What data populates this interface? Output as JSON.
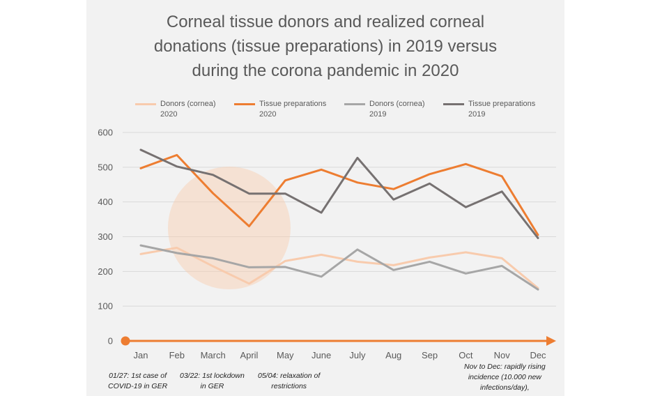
{
  "chart_data": {
    "type": "line",
    "title_lines": [
      "Corneal tissue donors and realized corneal",
      "donations (tissue preparations) in 2019 versus",
      "during the corona pandemic in 2020"
    ],
    "categories": [
      "Jan",
      "Feb",
      "March",
      "April",
      "May",
      "June",
      "July",
      "Aug",
      "Sep",
      "Oct",
      "Nov",
      "Dec"
    ],
    "y_ticks": [
      "0",
      "100",
      "200",
      "300",
      "400",
      "500",
      "600"
    ],
    "ylim": [
      0,
      600
    ],
    "grid": true,
    "legend_position": "top",
    "series": [
      {
        "name_lines": [
          "Donors (cornea)",
          "2020"
        ],
        "color": "#f8cbad",
        "values": [
          250,
          268,
          215,
          165,
          230,
          248,
          228,
          218,
          240,
          255,
          238,
          152
        ]
      },
      {
        "name_lines": [
          "Tissue preparations",
          "2020"
        ],
        "color": "#ed7d31",
        "values": [
          497,
          535,
          425,
          330,
          462,
          493,
          456,
          437,
          480,
          509,
          474,
          305
        ]
      },
      {
        "name_lines": [
          "Donors (cornea)",
          "2019"
        ],
        "color": "#a6a6a6",
        "values": [
          275,
          253,
          238,
          212,
          213,
          185,
          263,
          204,
          228,
          194,
          216,
          148
        ]
      },
      {
        "name_lines": [
          "Tissue preparations",
          "2019"
        ],
        "color": "#767171",
        "values": [
          550,
          502,
          478,
          424,
          424,
          369,
          527,
          407,
          453,
          385,
          430,
          296
        ]
      }
    ],
    "highlight": {
      "color": "#f8cbad"
    },
    "annotations": [
      {
        "lines": [
          "01/27: 1st case of",
          "COVID-19 in GER"
        ]
      },
      {
        "lines": [
          "03/22: 1st lockdown",
          "in GER"
        ]
      },
      {
        "lines": [
          "05/04: relaxation of",
          "restrictions"
        ]
      },
      {
        "lines": [
          "Nov to Dec: rapidly rising",
          "incidence (10.000 new",
          "infections/day),"
        ]
      }
    ],
    "timeline_color": "#ed7d31"
  }
}
